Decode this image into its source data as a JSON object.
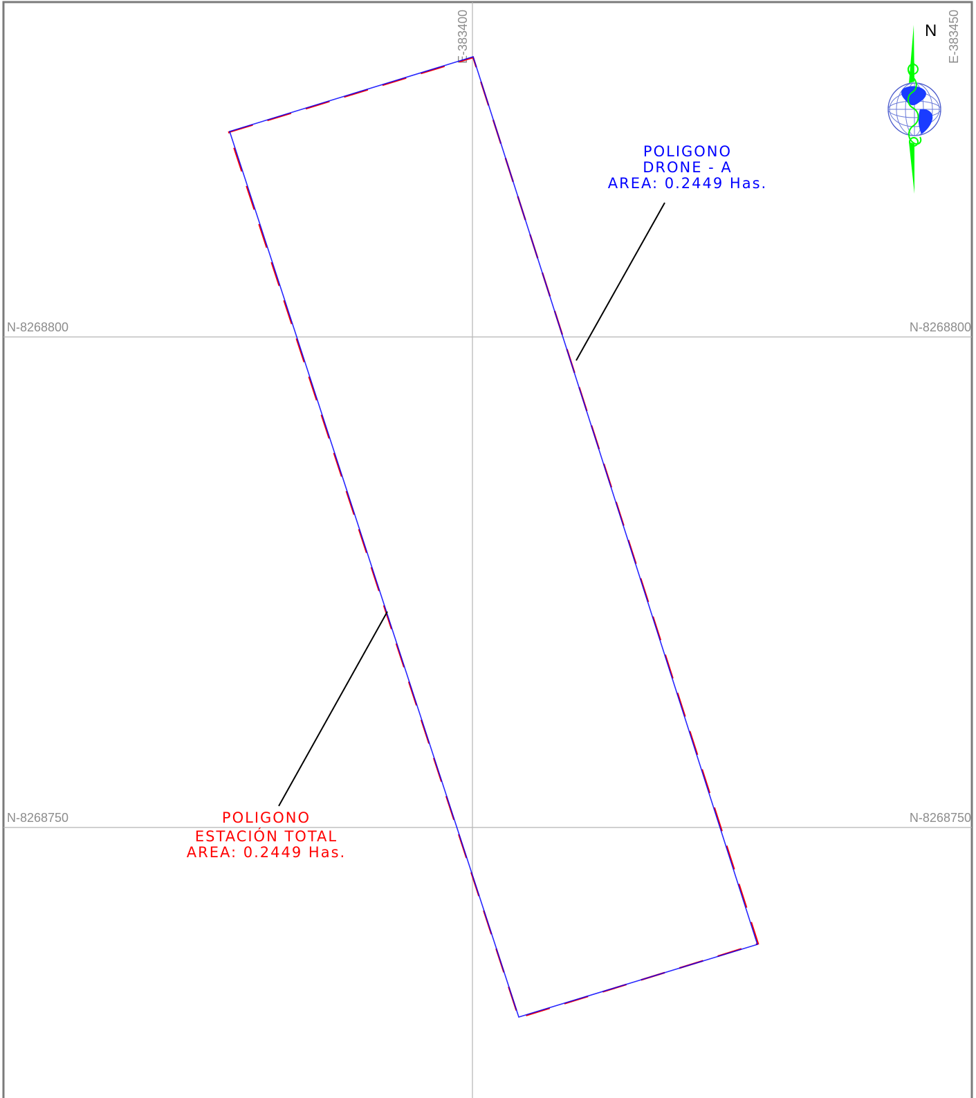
{
  "grid": {
    "easting_labels": [
      "E-383400",
      "E-383450"
    ],
    "northing_labels": [
      "N-8268800",
      "N-8268750"
    ]
  },
  "polygons": {
    "drone": {
      "title": "POLIGONO",
      "subtitle": "DRONE - A",
      "area": "AREA: 0.2449 Has.",
      "color": "#0000ff"
    },
    "total_station": {
      "title": "POLIGONO",
      "subtitle": "ESTACIÓN TOTAL",
      "area": "AREA: 0.2449 Has.",
      "color": "#ff0000"
    }
  },
  "north_arrow": {
    "letter": "N",
    "arrow_color": "#00ff00",
    "globe_color": "#1a3cff",
    "icon": "north-arrow-globe-icon"
  }
}
